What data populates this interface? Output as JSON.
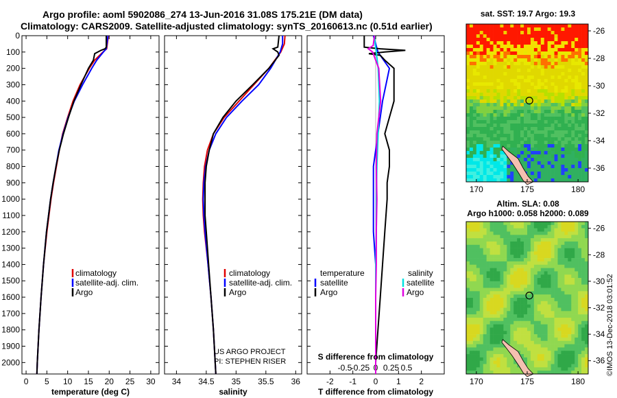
{
  "header": {
    "title_line1": "Argo profile: aoml 5902086_274 13-Jun-2016 31.08S 175.21E (DM data)",
    "title_line2": "Climatology: CARS2009. Satellite-adjusted climatology: synTS_20160613.nc (0.51d earlier)"
  },
  "colors": {
    "climatology": "#e00000",
    "satellite": "#0000ff",
    "argo": "#000000",
    "sat_salinity": "#00e0e0",
    "argo_salinity": "#e000e0"
  },
  "chart_data": [
    {
      "type": "line",
      "name": "temperature-profile",
      "xlabel": "temperature (deg C)",
      "ylabel": "",
      "xlim": [
        -1,
        32
      ],
      "ylim": [
        2070,
        0
      ],
      "xticks": [
        0,
        5,
        10,
        15,
        20,
        25,
        30
      ],
      "yticks": [
        0,
        100,
        200,
        300,
        400,
        500,
        600,
        700,
        800,
        900,
        1000,
        1100,
        1200,
        1300,
        1400,
        1500,
        1600,
        1700,
        1800,
        1900,
        2000
      ],
      "legend": [
        "climatology",
        "satellite-adj. clim.",
        "Argo"
      ],
      "series": [
        {
          "name": "climatology",
          "color": "#e00000",
          "depth": [
            0,
            80,
            100,
            150,
            200,
            300,
            400,
            500,
            600,
            700,
            800,
            900,
            1000,
            1200,
            1400,
            1600,
            1800,
            2000,
            2070
          ],
          "values": [
            19.8,
            19.4,
            18.5,
            16.5,
            15.2,
            13.0,
            11.3,
            10.0,
            8.8,
            8.0,
            7.3,
            6.6,
            6.0,
            5.0,
            4.2,
            3.6,
            3.1,
            2.7,
            2.6
          ]
        },
        {
          "name": "satellite-adj. clim.",
          "color": "#0000ff",
          "depth": [
            0,
            80,
            100,
            150,
            200,
            300,
            400,
            500,
            600,
            700,
            800,
            900,
            1000,
            1200,
            1400,
            1600,
            1800,
            2000,
            2070
          ],
          "values": [
            19.7,
            19.3,
            18.6,
            17.0,
            15.8,
            13.6,
            11.6,
            10.1,
            8.9,
            7.9,
            7.2,
            6.5,
            5.9,
            4.9,
            4.2,
            3.6,
            3.1,
            2.7,
            2.6
          ]
        },
        {
          "name": "Argo",
          "color": "#000000",
          "depth": [
            0,
            70,
            80,
            90,
            110,
            150,
            200,
            300,
            400,
            500,
            600,
            700,
            800,
            900,
            1000,
            1200,
            1400,
            1600,
            1800,
            2000,
            2070
          ],
          "values": [
            19.3,
            19.3,
            19.0,
            18.0,
            16.5,
            16.2,
            15.0,
            13.2,
            11.5,
            10.2,
            9.0,
            8.0,
            7.2,
            6.5,
            5.9,
            4.9,
            4.2,
            3.6,
            3.1,
            2.7,
            2.6
          ]
        }
      ]
    },
    {
      "type": "line",
      "name": "salinity-profile",
      "xlabel": "salinity",
      "xlim": [
        33.8,
        36.1
      ],
      "ylim": [
        2070,
        0
      ],
      "xticks": [
        34,
        34.5,
        35,
        35.5,
        36
      ],
      "legend": [
        "climatology",
        "satellite-adj. clim.",
        "Argo"
      ],
      "annotation": [
        "US ARGO PROJECT",
        "PI: STEPHEN RISER"
      ],
      "series": [
        {
          "name": "climatology",
          "color": "#e00000",
          "depth": [
            0,
            50,
            100,
            200,
            300,
            400,
            500,
            600,
            700,
            800,
            900,
            1000,
            1100,
            1200,
            1400,
            1600,
            1800,
            2000,
            2070
          ],
          "values": [
            35.82,
            35.81,
            35.75,
            35.55,
            35.3,
            35.05,
            34.8,
            34.62,
            34.52,
            34.47,
            34.45,
            34.44,
            34.45,
            34.47,
            34.53,
            34.58,
            34.62,
            34.65,
            34.66
          ]
        },
        {
          "name": "satellite-adj. clim.",
          "color": "#0000ff",
          "depth": [
            0,
            50,
            100,
            200,
            300,
            400,
            500,
            600,
            700,
            800,
            900,
            1000,
            1100,
            1200,
            1400,
            1600,
            1800,
            2000,
            2070
          ],
          "values": [
            35.78,
            35.78,
            35.74,
            35.58,
            35.38,
            35.1,
            34.84,
            34.66,
            34.55,
            34.49,
            34.46,
            34.45,
            34.46,
            34.48,
            34.53,
            34.58,
            34.62,
            34.65,
            34.66
          ]
        },
        {
          "name": "Argo",
          "color": "#000000",
          "depth": [
            0,
            70,
            80,
            100,
            120,
            200,
            300,
            400,
            500,
            600,
            700,
            800,
            900,
            1000,
            1100,
            1200,
            1400,
            1600,
            1800,
            2000,
            2070
          ],
          "values": [
            35.72,
            35.7,
            35.62,
            35.7,
            35.72,
            35.55,
            35.28,
            35.0,
            34.78,
            34.62,
            34.55,
            34.5,
            34.48,
            34.48,
            34.48,
            34.5,
            34.54,
            34.58,
            34.62,
            34.65,
            34.66
          ]
        }
      ]
    },
    {
      "type": "line",
      "name": "difference-profile",
      "xlabel": "T difference from climatology",
      "xlabel_top": "S difference from climatology",
      "xlim": [
        -3,
        3
      ],
      "ylim": [
        2070,
        0
      ],
      "xticks": [
        -2,
        -1,
        0,
        1,
        2
      ],
      "xtick_labels": [
        "-2",
        "-1",
        "0",
        "1",
        "2"
      ],
      "sticks": [
        -0.5,
        -0.25,
        0,
        0.25,
        0.5
      ],
      "stick_labels": [
        "-0.5",
        "-0.25",
        "0",
        "0.25",
        "0.5"
      ],
      "legend_left": {
        "title": "temperature",
        "items": [
          "satellite",
          "Argo"
        ]
      },
      "legend_right": {
        "title": "salinity",
        "items": [
          "satellite",
          "Argo"
        ]
      },
      "series": [
        {
          "name": "T satellite",
          "color": "#0000ff",
          "depth": [
            0,
            50,
            100,
            200,
            400,
            600,
            800,
            1000,
            1200,
            1400,
            1600,
            1800,
            2000,
            2070
          ],
          "values": [
            -0.1,
            0.0,
            0.1,
            0.6,
            0.3,
            0.1,
            -0.1,
            -0.1,
            -0.1,
            0.0,
            0.0,
            0.0,
            0.0,
            0.0
          ]
        },
        {
          "name": "T Argo",
          "color": "#000000",
          "depth": [
            0,
            70,
            80,
            90,
            100,
            110,
            120,
            150,
            200,
            300,
            400,
            500,
            600,
            700,
            800,
            900,
            1000,
            1200,
            1400,
            1600,
            1800,
            2000,
            2070
          ],
          "values": [
            -0.5,
            -0.5,
            0.2,
            1.3,
            0.4,
            -0.3,
            0.2,
            0.4,
            0.8,
            0.8,
            0.8,
            0.6,
            0.4,
            0.6,
            0.6,
            0.5,
            0.5,
            0.4,
            0.3,
            0.2,
            0.1,
            0.0,
            0.0
          ]
        },
        {
          "name": "S satellite",
          "color": "#00e0e0",
          "depth": [
            0,
            50,
            100,
            200,
            400,
            600,
            800,
            1000,
            1200,
            1400,
            1600,
            1800,
            2000,
            2070
          ],
          "values": [
            -0.02,
            -0.01,
            0.01,
            0.04,
            0.06,
            0.04,
            0.02,
            0.01,
            0.01,
            0.0,
            0.0,
            0.0,
            0.0,
            0.0
          ]
        },
        {
          "name": "S Argo",
          "color": "#e000e0",
          "depth": [
            0,
            60,
            80,
            100,
            200,
            400,
            600,
            800,
            1000,
            1200,
            1400,
            1600,
            1800,
            2000,
            2070
          ],
          "values": [
            -0.02,
            -0.04,
            -0.12,
            -0.05,
            0.05,
            0.08,
            0.02,
            0.01,
            0.02,
            0.01,
            0.01,
            0.0,
            0.0,
            0.0,
            0.0
          ]
        }
      ]
    },
    {
      "type": "heatmap",
      "name": "sst-map",
      "title": "sat. SST: 19.7 Argo: 19.3",
      "xlim": [
        169,
        181
      ],
      "ylim": [
        -37,
        -25.5
      ],
      "xticks": [
        170,
        175,
        180
      ],
      "yticks": [
        -26,
        -28,
        -30,
        -32,
        -34,
        -36
      ],
      "marker": {
        "lon": 175.21,
        "lat": -31.08
      }
    },
    {
      "type": "heatmap",
      "name": "sla-map",
      "title_line1": "Altim. SLA: 0.08",
      "title_line2": "Argo h1000: 0.058 h2000: 0.089",
      "xlim": [
        169,
        181
      ],
      "ylim": [
        -37,
        -25.5
      ],
      "xticks": [
        170,
        175,
        180
      ],
      "yticks": [
        -26,
        -28,
        -30,
        -32,
        -34,
        -36
      ],
      "marker": {
        "lon": 175.21,
        "lat": -31.08
      }
    }
  ],
  "credit": "©IMOS 13-Dec-2018 03:01:52"
}
